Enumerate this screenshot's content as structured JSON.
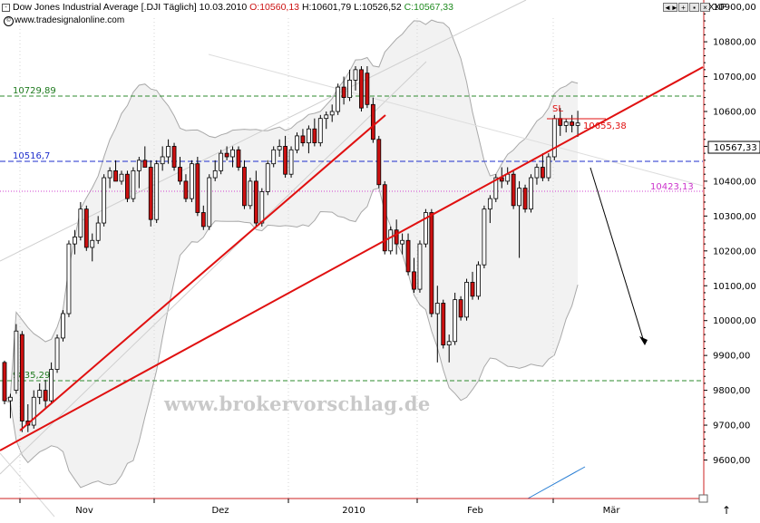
{
  "header": {
    "title": "Dow Jones Industrial Average [.DJI  Täglich]",
    "date": "10.03.2010",
    "open": "O:10560,13",
    "high": "H:10601,79",
    "low": "L:10526,52",
    "close": "C:10567,33",
    "source": "www.tradesignalonline.com",
    "exchange": "XXP",
    "window_buttons": [
      "◄►",
      "+",
      "▪",
      "×"
    ]
  },
  "watermark": "www.brokervorschlag.de",
  "annotations": {
    "level_10729": "10729,89",
    "level_10516": "10516,7",
    "level_10423": "10423,13",
    "level_9835": "9835,29",
    "sl_label": "SL",
    "sl_value": "10655,38",
    "last_price": "10567,33"
  },
  "chart_data": {
    "type": "candlestick",
    "y_range": [
      9520,
      10960
    ],
    "y_tick_labels": [
      "9600,00",
      "9700,00",
      "9800,00",
      "9900,00",
      "10000,00",
      "10100,00",
      "10200,00",
      "10300,00",
      "10400,00",
      "10500,00",
      "10600,00",
      "10700,00",
      "10800,00",
      "10900,00"
    ],
    "x_tick_labels": [
      "Nov",
      "Dez",
      "2010",
      "Feb",
      "Mär"
    ],
    "horizontal_levels": [
      {
        "value": 10729.89,
        "color": "#2e8b2e",
        "style": "dashed"
      },
      {
        "value": 10516.7,
        "color": "#1f2fcc",
        "style": "dashed"
      },
      {
        "value": 10423.13,
        "color": "#d040d0",
        "style": "dotted"
      },
      {
        "value": 9835.29,
        "color": "#2e8b2e",
        "style": "dashed"
      }
    ],
    "sl_level": 10655.38,
    "candles": [
      {
        "o": 9880,
        "h": 9885,
        "l": 9760,
        "c": 9770
      },
      {
        "o": 9770,
        "h": 9790,
        "l": 9720,
        "c": 9780
      },
      {
        "o": 9800,
        "h": 9990,
        "l": 9790,
        "c": 9970
      },
      {
        "o": 9960,
        "h": 9970,
        "l": 9680,
        "c": 9712
      },
      {
        "o": 9712,
        "h": 9760,
        "l": 9680,
        "c": 9700
      },
      {
        "o": 9700,
        "h": 9800,
        "l": 9690,
        "c": 9780
      },
      {
        "o": 9780,
        "h": 9820,
        "l": 9760,
        "c": 9800
      },
      {
        "o": 9800,
        "h": 9830,
        "l": 9750,
        "c": 9770
      },
      {
        "o": 9770,
        "h": 9880,
        "l": 9760,
        "c": 9860
      },
      {
        "o": 9860,
        "h": 9960,
        "l": 9850,
        "c": 9950
      },
      {
        "o": 9950,
        "h": 10030,
        "l": 9940,
        "c": 10020
      },
      {
        "o": 10020,
        "h": 10230,
        "l": 10010,
        "c": 10220
      },
      {
        "o": 10220,
        "h": 10260,
        "l": 10190,
        "c": 10240
      },
      {
        "o": 10240,
        "h": 10340,
        "l": 10230,
        "c": 10320
      },
      {
        "o": 10320,
        "h": 10330,
        "l": 10200,
        "c": 10210
      },
      {
        "o": 10210,
        "h": 10250,
        "l": 10170,
        "c": 10230
      },
      {
        "o": 10230,
        "h": 10300,
        "l": 10220,
        "c": 10280
      },
      {
        "o": 10280,
        "h": 10420,
        "l": 10270,
        "c": 10410
      },
      {
        "o": 10410,
        "h": 10440,
        "l": 10380,
        "c": 10430
      },
      {
        "o": 10430,
        "h": 10460,
        "l": 10400,
        "c": 10400
      },
      {
        "o": 10400,
        "h": 10430,
        "l": 10390,
        "c": 10420
      },
      {
        "o": 10420,
        "h": 10430,
        "l": 10340,
        "c": 10350
      },
      {
        "o": 10350,
        "h": 10440,
        "l": 10340,
        "c": 10430
      },
      {
        "o": 10430,
        "h": 10470,
        "l": 10380,
        "c": 10460
      },
      {
        "o": 10460,
        "h": 10500,
        "l": 10440,
        "c": 10440
      },
      {
        "o": 10440,
        "h": 10460,
        "l": 10270,
        "c": 10290
      },
      {
        "o": 10290,
        "h": 10460,
        "l": 10280,
        "c": 10450
      },
      {
        "o": 10450,
        "h": 10500,
        "l": 10430,
        "c": 10470
      },
      {
        "o": 10470,
        "h": 10520,
        "l": 10450,
        "c": 10500
      },
      {
        "o": 10500,
        "h": 10510,
        "l": 10430,
        "c": 10440
      },
      {
        "o": 10440,
        "h": 10470,
        "l": 10390,
        "c": 10400
      },
      {
        "o": 10400,
        "h": 10420,
        "l": 10340,
        "c": 10350
      },
      {
        "o": 10350,
        "h": 10460,
        "l": 10340,
        "c": 10450
      },
      {
        "o": 10450,
        "h": 10470,
        "l": 10300,
        "c": 10310
      },
      {
        "o": 10310,
        "h": 10330,
        "l": 10260,
        "c": 10270
      },
      {
        "o": 10270,
        "h": 10420,
        "l": 10260,
        "c": 10410
      },
      {
        "o": 10410,
        "h": 10460,
        "l": 10400,
        "c": 10430
      },
      {
        "o": 10430,
        "h": 10490,
        "l": 10420,
        "c": 10480
      },
      {
        "o": 10480,
        "h": 10500,
        "l": 10460,
        "c": 10470
      },
      {
        "o": 10470,
        "h": 10500,
        "l": 10440,
        "c": 10490
      },
      {
        "o": 10490,
        "h": 10500,
        "l": 10430,
        "c": 10440
      },
      {
        "o": 10440,
        "h": 10460,
        "l": 10320,
        "c": 10330
      },
      {
        "o": 10330,
        "h": 10410,
        "l": 10320,
        "c": 10400
      },
      {
        "o": 10400,
        "h": 10430,
        "l": 10270,
        "c": 10280
      },
      {
        "o": 10280,
        "h": 10380,
        "l": 10270,
        "c": 10370
      },
      {
        "o": 10370,
        "h": 10460,
        "l": 10360,
        "c": 10450
      },
      {
        "o": 10450,
        "h": 10500,
        "l": 10440,
        "c": 10490
      },
      {
        "o": 10490,
        "h": 10520,
        "l": 10470,
        "c": 10500
      },
      {
        "o": 10500,
        "h": 10530,
        "l": 10410,
        "c": 10420
      },
      {
        "o": 10420,
        "h": 10500,
        "l": 10410,
        "c": 10490
      },
      {
        "o": 10490,
        "h": 10540,
        "l": 10480,
        "c": 10530
      },
      {
        "o": 10530,
        "h": 10550,
        "l": 10500,
        "c": 10510
      },
      {
        "o": 10510,
        "h": 10560,
        "l": 10480,
        "c": 10550
      },
      {
        "o": 10550,
        "h": 10580,
        "l": 10500,
        "c": 10510
      },
      {
        "o": 10510,
        "h": 10590,
        "l": 10500,
        "c": 10580
      },
      {
        "o": 10580,
        "h": 10600,
        "l": 10550,
        "c": 10590
      },
      {
        "o": 10590,
        "h": 10620,
        "l": 10570,
        "c": 10600
      },
      {
        "o": 10600,
        "h": 10680,
        "l": 10590,
        "c": 10670
      },
      {
        "o": 10670,
        "h": 10700,
        "l": 10620,
        "c": 10640
      },
      {
        "o": 10640,
        "h": 10720,
        "l": 10630,
        "c": 10690
      },
      {
        "o": 10690,
        "h": 10730,
        "l": 10660,
        "c": 10720
      },
      {
        "o": 10720,
        "h": 10730,
        "l": 10600,
        "c": 10610
      },
      {
        "o": 10710,
        "h": 10730,
        "l": 10610,
        "c": 10620
      },
      {
        "o": 10620,
        "h": 10640,
        "l": 10510,
        "c": 10520
      },
      {
        "o": 10520,
        "h": 10530,
        "l": 10380,
        "c": 10390
      },
      {
        "o": 10390,
        "h": 10400,
        "l": 10190,
        "c": 10200
      },
      {
        "o": 10200,
        "h": 10270,
        "l": 10190,
        "c": 10260
      },
      {
        "o": 10260,
        "h": 10290,
        "l": 10190,
        "c": 10220
      },
      {
        "o": 10220,
        "h": 10250,
        "l": 10190,
        "c": 10230
      },
      {
        "o": 10230,
        "h": 10250,
        "l": 10130,
        "c": 10140
      },
      {
        "o": 10140,
        "h": 10180,
        "l": 10080,
        "c": 10090
      },
      {
        "o": 10090,
        "h": 10230,
        "l": 10080,
        "c": 10220
      },
      {
        "o": 10220,
        "h": 10320,
        "l": 10210,
        "c": 10310
      },
      {
        "o": 10310,
        "h": 10320,
        "l": 10010,
        "c": 10020
      },
      {
        "o": 10020,
        "h": 10100,
        "l": 9880,
        "c": 10050
      },
      {
        "o": 10050,
        "h": 10060,
        "l": 9920,
        "c": 9930
      },
      {
        "o": 9930,
        "h": 9960,
        "l": 9880,
        "c": 9940
      },
      {
        "o": 9940,
        "h": 10080,
        "l": 9930,
        "c": 10060
      },
      {
        "o": 10060,
        "h": 10070,
        "l": 10000,
        "c": 10010
      },
      {
        "o": 10010,
        "h": 10120,
        "l": 10000,
        "c": 10110
      },
      {
        "o": 10110,
        "h": 10140,
        "l": 10060,
        "c": 10070
      },
      {
        "o": 10070,
        "h": 10170,
        "l": 10060,
        "c": 10160
      },
      {
        "o": 10160,
        "h": 10330,
        "l": 10150,
        "c": 10320
      },
      {
        "o": 10320,
        "h": 10360,
        "l": 10280,
        "c": 10350
      },
      {
        "o": 10350,
        "h": 10420,
        "l": 10340,
        "c": 10410
      },
      {
        "o": 10410,
        "h": 10440,
        "l": 10380,
        "c": 10400
      },
      {
        "o": 10400,
        "h": 10440,
        "l": 10390,
        "c": 10420
      },
      {
        "o": 10420,
        "h": 10430,
        "l": 10320,
        "c": 10330
      },
      {
        "o": 10330,
        "h": 10400,
        "l": 10180,
        "c": 10380
      },
      {
        "o": 10380,
        "h": 10390,
        "l": 10310,
        "c": 10320
      },
      {
        "o": 10320,
        "h": 10420,
        "l": 10310,
        "c": 10410
      },
      {
        "o": 10410,
        "h": 10450,
        "l": 10390,
        "c": 10440
      },
      {
        "o": 10440,
        "h": 10480,
        "l": 10400,
        "c": 10410
      },
      {
        "o": 10410,
        "h": 10480,
        "l": 10400,
        "c": 10470
      },
      {
        "o": 10470,
        "h": 10590,
        "l": 10460,
        "c": 10580
      },
      {
        "o": 10580,
        "h": 10610,
        "l": 10530,
        "c": 10560
      },
      {
        "o": 10560,
        "h": 10580,
        "l": 10540,
        "c": 10570
      },
      {
        "o": 10570,
        "h": 10590,
        "l": 10540,
        "c": 10560
      },
      {
        "o": 10560,
        "h": 10602,
        "l": 10527,
        "c": 10567
      }
    ]
  },
  "colors": {
    "up_body": "#ffffff",
    "down_body": "#cc1010",
    "candle_outline": "#000000",
    "trendline": "#e01010",
    "bollinger": "#a8a8a8",
    "bollinger_fill": "#f2f2f2",
    "axis_text": "#000000",
    "axis_line": "#cc2020"
  }
}
